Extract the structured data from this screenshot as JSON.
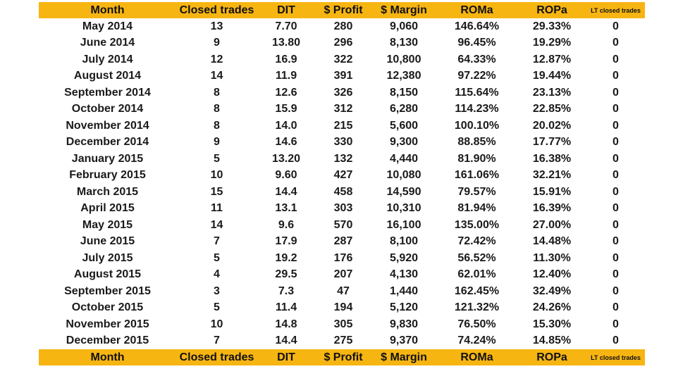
{
  "headers": [
    "Month",
    "Closed trades",
    "DIT",
    "$ Profit",
    "$ Margin",
    "ROMa",
    "ROPa",
    "LT closed trades"
  ],
  "rows": [
    [
      "May 2014",
      "13",
      "7.70",
      "280",
      "9,060",
      "146.64%",
      "29.33%",
      "0"
    ],
    [
      "June 2014",
      "9",
      "13.80",
      "296",
      "8,130",
      "96.45%",
      "19.29%",
      "0"
    ],
    [
      "July 2014",
      "12",
      "16.9",
      "322",
      "10,800",
      "64.33%",
      "12.87%",
      "0"
    ],
    [
      "August 2014",
      "14",
      "11.9",
      "391",
      "12,380",
      "97.22%",
      "19.44%",
      "0"
    ],
    [
      "September 2014",
      "8",
      "12.6",
      "326",
      "8,150",
      "115.64%",
      "23.13%",
      "0"
    ],
    [
      "October 2014",
      "8",
      "15.9",
      "312",
      "6,280",
      "114.23%",
      "22.85%",
      "0"
    ],
    [
      "November 2014",
      "8",
      "14.0",
      "215",
      "5,600",
      "100.10%",
      "20.02%",
      "0"
    ],
    [
      "December 2014",
      "9",
      "14.6",
      "330",
      "9,300",
      "88.85%",
      "17.77%",
      "0"
    ],
    [
      "January 2015",
      "5",
      "13.20",
      "132",
      "4,440",
      "81.90%",
      "16.38%",
      "0"
    ],
    [
      "February 2015",
      "10",
      "9.60",
      "427",
      "10,080",
      "161.06%",
      "32.21%",
      "0"
    ],
    [
      "March 2015",
      "15",
      "14.4",
      "458",
      "14,590",
      "79.57%",
      "15.91%",
      "0"
    ],
    [
      "April 2015",
      "11",
      "13.1",
      "303",
      "10,310",
      "81.94%",
      "16.39%",
      "0"
    ],
    [
      "May 2015",
      "14",
      "9.6",
      "570",
      "16,100",
      "135.00%",
      "27.00%",
      "0"
    ],
    [
      "June 2015",
      "7",
      "17.9",
      "287",
      "8,100",
      "72.42%",
      "14.48%",
      "0"
    ],
    [
      "July 2015",
      "5",
      "19.2",
      "176",
      "5,920",
      "56.52%",
      "11.30%",
      "0"
    ],
    [
      "August 2015",
      "4",
      "29.5",
      "207",
      "4,130",
      "62.01%",
      "12.40%",
      "0"
    ],
    [
      "September 2015",
      "3",
      "7.3",
      "47",
      "1,440",
      "162.45%",
      "32.49%",
      "0"
    ],
    [
      "October 2015",
      "5",
      "11.4",
      "194",
      "5,120",
      "121.32%",
      "24.26%",
      "0"
    ],
    [
      "November 2015",
      "10",
      "14.8",
      "305",
      "9,830",
      "76.50%",
      "15.30%",
      "0"
    ],
    [
      "December 2015",
      "7",
      "14.4",
      "275",
      "9,370",
      "74.24%",
      "14.85%",
      "0"
    ]
  ],
  "header_color": "#f7b512"
}
